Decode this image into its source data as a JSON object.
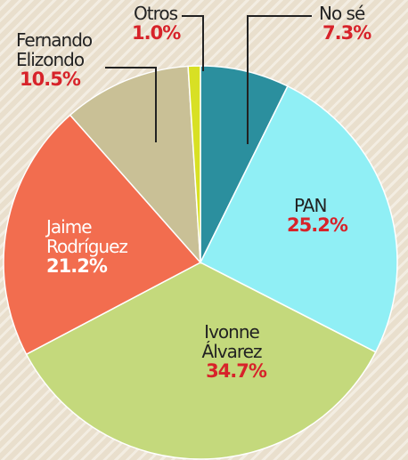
{
  "chart_data": {
    "type": "pie",
    "categories": [
      "No sé",
      "PAN",
      "Ivonne Álvarez",
      "Jaime Rodríguez",
      "Fernando Elizondo",
      "Otros"
    ],
    "values": [
      7.3,
      25.2,
      34.7,
      21.2,
      10.5,
      1.0
    ],
    "value_labels": [
      "7.3%",
      "25.2%",
      "34.7%",
      "21.2%",
      "10.5%",
      "1.0%"
    ],
    "colors": [
      "#2b8f9e",
      "#90eff5",
      "#c4d97c",
      "#f26d4f",
      "#c9c096",
      "#d8e024"
    ]
  }
}
